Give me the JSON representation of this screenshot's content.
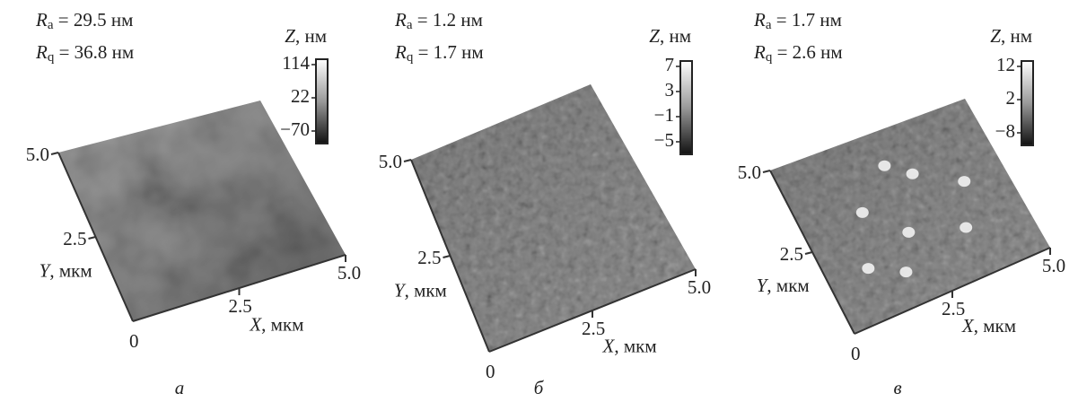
{
  "panels": [
    {
      "ra": {
        "symbol": "R",
        "sub": "a",
        "value": " = 29.5 нм"
      },
      "rq": {
        "symbol": "R",
        "sub": "q",
        "value": " = 36.8 нм"
      },
      "colorbar": {
        "symbol": "Z",
        "unit": ", нм",
        "ticks": [
          "114",
          "22",
          "−70"
        ]
      },
      "y_axis": {
        "symbol": "Y",
        "unit": ", мкм",
        "ticks": [
          "2.5",
          "5.0"
        ]
      },
      "x_axis": {
        "symbol": "X",
        "unit": ", мкм",
        "ticks": [
          "2.5",
          "5.0"
        ]
      },
      "origin": "0",
      "caption": "а"
    },
    {
      "ra": {
        "symbol": "R",
        "sub": "a",
        "value": " = 1.2 нм"
      },
      "rq": {
        "symbol": "R",
        "sub": "q",
        "value": " = 1.7 нм"
      },
      "colorbar": {
        "symbol": "Z",
        "unit": ", нм",
        "ticks": [
          "7",
          "3",
          "−1",
          "−5"
        ]
      },
      "y_axis": {
        "symbol": "Y",
        "unit": ", мкм",
        "ticks": [
          "2.5",
          "5.0"
        ]
      },
      "x_axis": {
        "symbol": "X",
        "unit": ", мкм",
        "ticks": [
          "2.5",
          "5.0"
        ]
      },
      "origin": "0",
      "caption": "б"
    },
    {
      "ra": {
        "symbol": "R",
        "sub": "a",
        "value": " = 1.7 нм"
      },
      "rq": {
        "symbol": "R",
        "sub": "q",
        "value": " = 2.6 нм"
      },
      "colorbar": {
        "symbol": "Z",
        "unit": ", нм",
        "ticks": [
          "12",
          "2",
          "−8"
        ]
      },
      "y_axis": {
        "symbol": "Y",
        "unit": ", мкм",
        "ticks": [
          "2.5",
          "5.0"
        ]
      },
      "x_axis": {
        "symbol": "X",
        "unit": ", мкм",
        "ticks": [
          "2.5",
          "5.0"
        ]
      },
      "origin": "0",
      "caption": "в"
    }
  ]
}
